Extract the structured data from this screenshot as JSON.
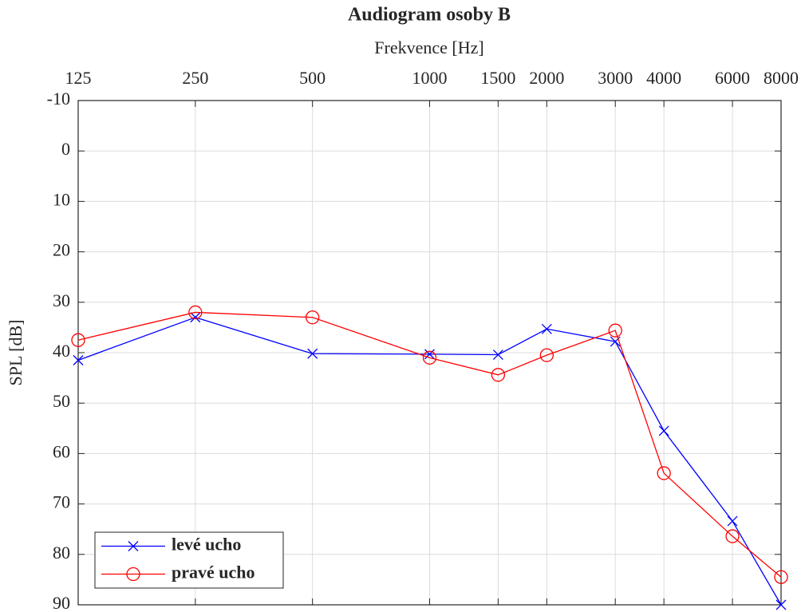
{
  "chart_data": {
    "type": "line",
    "title": "Audiogram osoby B",
    "xlabel": "Frekvence [Hz]",
    "ylabel": "SPL [dB]",
    "x": [
      125,
      250,
      500,
      1000,
      1500,
      2000,
      3000,
      4000,
      6000,
      8000
    ],
    "series": [
      {
        "name": "levé ucho",
        "color": "#0000ff",
        "marker": "x",
        "values": [
          41.5,
          33,
          40.2,
          40.3,
          40.4,
          35.3,
          37.8,
          55.5,
          73.4,
          90
        ]
      },
      {
        "name": "pravé ucho",
        "color": "#ff0000",
        "marker": "o",
        "values": [
          37.5,
          32,
          33,
          41,
          44.4,
          40.5,
          35.6,
          63.9,
          76.4,
          84.5
        ]
      }
    ],
    "xscale": "log",
    "xaxis_position": "top",
    "yreversed": true,
    "xlim": [
      125,
      8000
    ],
    "xticks": [
      125,
      250,
      500,
      1000,
      1500,
      2000,
      3000,
      4000,
      6000,
      8000
    ],
    "ylim": [
      -10,
      90
    ],
    "yticks": [
      -10,
      0,
      10,
      20,
      30,
      40,
      50,
      60,
      70,
      80,
      90
    ],
    "grid": true,
    "legend": "lower left"
  }
}
